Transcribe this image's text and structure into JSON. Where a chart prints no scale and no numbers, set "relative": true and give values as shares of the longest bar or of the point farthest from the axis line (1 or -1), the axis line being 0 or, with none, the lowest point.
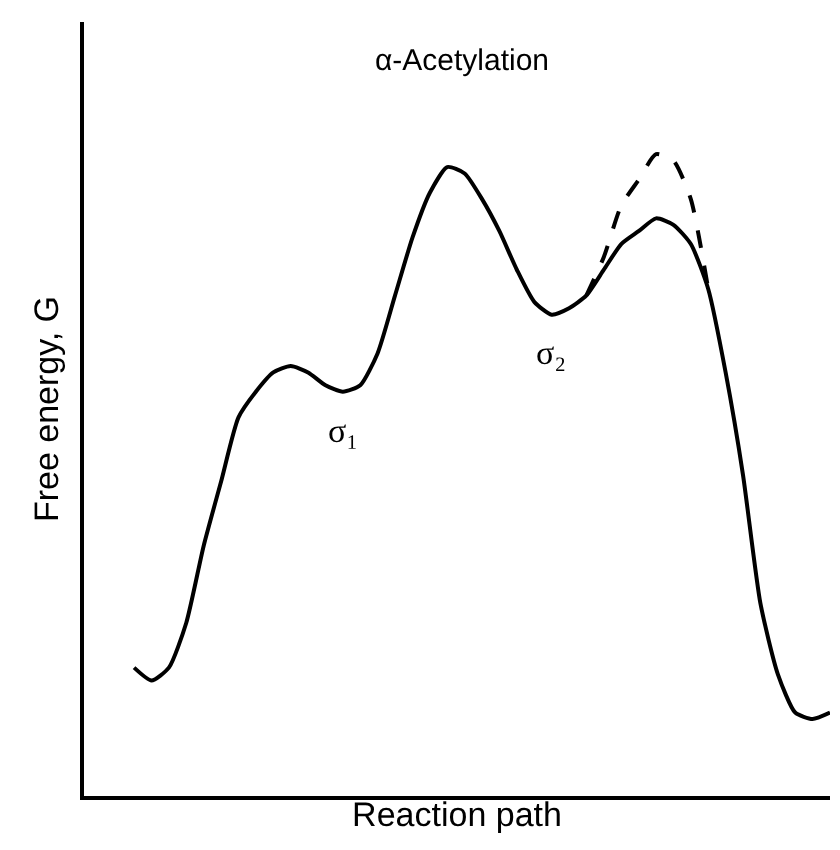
{
  "chart_data": {
    "type": "line",
    "title": "α-Acetylation",
    "xlabel": "Reaction path",
    "ylabel": "Free energy, G",
    "relative": true,
    "marker": "none",
    "categories": [
      null,
      null,
      null,
      null,
      null,
      null,
      null,
      null,
      null,
      null,
      null,
      null,
      null,
      null,
      null,
      null,
      null,
      null,
      null,
      null,
      null,
      null,
      null,
      null,
      null,
      null,
      null,
      null,
      null,
      null,
      null,
      null,
      null,
      null,
      null,
      null,
      null,
      null,
      null,
      null,
      null
    ],
    "series": [
      {
        "color": "#000000",
        "line_style": "solid",
        "values": [
          0.2,
          0.18,
          0.2,
          0.27,
          0.39,
          0.49,
          0.59,
          0.63,
          0.66,
          0.67,
          0.66,
          0.64,
          0.63,
          0.64,
          0.69,
          0.78,
          0.87,
          0.94,
          0.98,
          0.97,
          0.93,
          0.88,
          0.82,
          0.77,
          0.75,
          0.76,
          0.78,
          0.82,
          0.86,
          0.88,
          0.9,
          0.89,
          0.86,
          0.79,
          0.66,
          0.5,
          0.3,
          0.19,
          0.13,
          0.12,
          0.13
        ]
      },
      {
        "color": "#000000",
        "line_style": "dashed",
        "values": [
          null,
          null,
          null,
          null,
          null,
          null,
          null,
          null,
          null,
          null,
          null,
          null,
          null,
          null,
          null,
          null,
          null,
          null,
          null,
          null,
          null,
          null,
          null,
          null,
          null,
          null,
          0.78,
          0.84,
          0.92,
          0.96,
          1.0,
          0.99,
          0.93,
          0.79,
          null,
          null,
          null,
          null,
          null,
          null,
          null
        ]
      }
    ],
    "annotations": [
      "σ₁",
      "σ₂"
    ]
  }
}
